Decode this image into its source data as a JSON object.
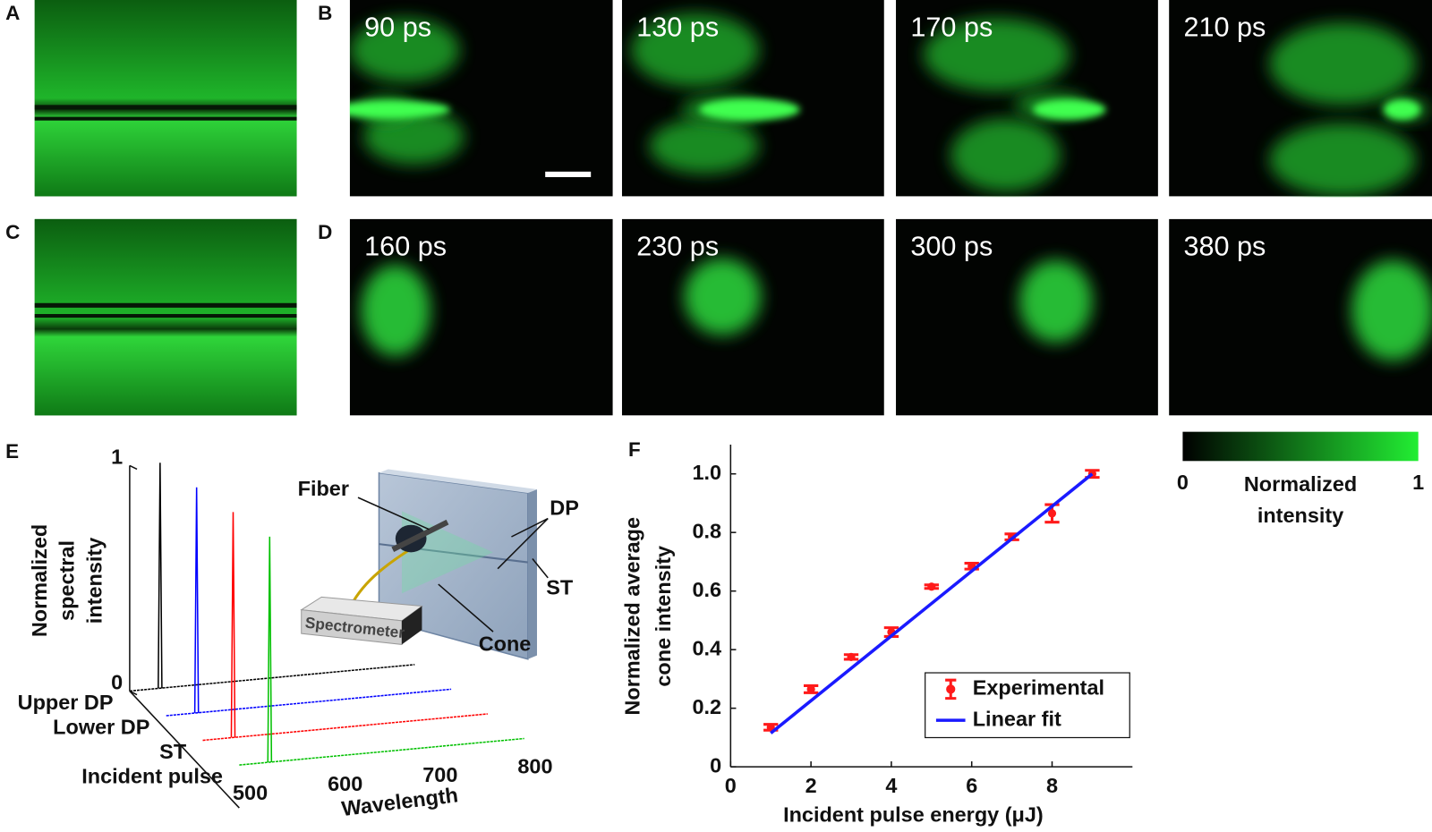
{
  "panel_labels": [
    "A",
    "B",
    "C",
    "D",
    "E",
    "F"
  ],
  "time_series": {
    "B": [
      "90 ps",
      "130 ps",
      "170 ps",
      "210 ps"
    ],
    "D": [
      "160 ps",
      "230 ps",
      "300 ps",
      "380 ps"
    ]
  },
  "colorbar": {
    "colors": [
      "#000000",
      "#22ee33"
    ],
    "ticks": [
      0,
      1
    ],
    "label_lines": [
      "Normalized",
      "intensity"
    ]
  },
  "schematic": {
    "labels": [
      "Fiber",
      "DP",
      "ST",
      "Cone",
      "Spectrometer"
    ]
  },
  "chart_data": [
    {
      "type": "waterfall",
      "ylabel_lines": [
        "Normalized",
        "spectral",
        "intensity"
      ],
      "xlabel": "Wavelength",
      "xlim": [
        500,
        800
      ],
      "xticks": [
        500,
        600,
        700,
        800
      ],
      "ylim": [
        0,
        1
      ],
      "yticks": [
        0,
        1
      ],
      "series": [
        {
          "name": "Upper DP",
          "color": "#000000",
          "peak_wavelength": 532,
          "value": 1
        },
        {
          "name": "Lower DP",
          "color": "#0000ff",
          "peak_wavelength": 532,
          "value": 1
        },
        {
          "name": "ST",
          "color": "#ff0000",
          "peak_wavelength": 532,
          "value": 1
        },
        {
          "name": "Incident pulse",
          "color": "#00c000",
          "peak_wavelength": 532,
          "value": 1
        }
      ]
    },
    {
      "type": "scatter",
      "xlabel": "Incident pulse energy (μJ)",
      "ylabel_lines": [
        "Normalized average",
        "cone intensity"
      ],
      "xlim": [
        0,
        10
      ],
      "xticks": [
        0,
        2,
        4,
        6,
        8
      ],
      "ylim": [
        0,
        1.1
      ],
      "yticks": [
        0,
        0.2,
        0.4,
        0.6,
        0.8,
        {
          "value": 1,
          "label": "1.0"
        }
      ],
      "legend": "lower right",
      "series": [
        {
          "name": "Experimental",
          "color": "#ff1a1a",
          "x": [
            1,
            2,
            3,
            4,
            5,
            6,
            7,
            8,
            9
          ],
          "values": [
            0.135,
            0.265,
            0.375,
            0.46,
            0.615,
            0.685,
            0.785,
            0.865,
            1.0
          ],
          "errors": [
            0.01,
            0.012,
            0.008,
            0.015,
            0.006,
            0.01,
            0.01,
            0.03,
            0.012
          ]
        },
        {
          "name": "Linear fit",
          "color": "#1a1aff",
          "x": [
            1,
            9
          ],
          "values": [
            0.115,
            1.0
          ]
        }
      ]
    }
  ]
}
